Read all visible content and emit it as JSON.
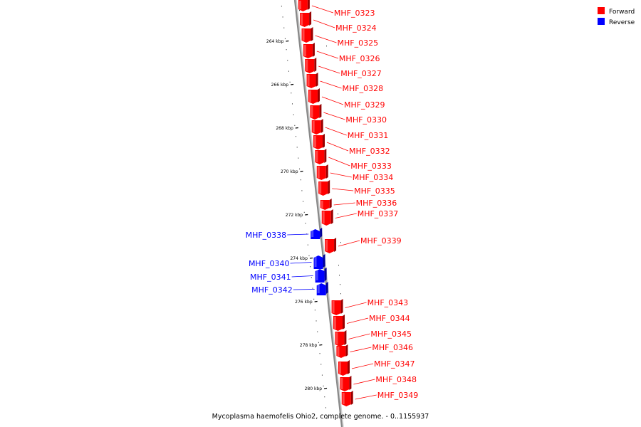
{
  "caption": "Mycoplasma haemofelis Ohio2, complete genome. - 0..1155937",
  "legend": [
    {
      "label": "Forward",
      "color": "#ff0000"
    },
    {
      "label": "Reverse",
      "color": "#0000ff"
    }
  ],
  "colors": {
    "forward": "#ff0000",
    "reverse": "#0000ff",
    "backbone": "#888888"
  },
  "ticks": [
    "264 kbp",
    "266 kbp",
    "268 kbp",
    "270 kbp",
    "272 kbp",
    "274 kbp",
    "276 kbp",
    "278 kbp",
    "280 kbp"
  ],
  "genes": [
    {
      "name": "MHF_0323",
      "strand": "forward"
    },
    {
      "name": "MHF_0324",
      "strand": "forward"
    },
    {
      "name": "MHF_0325",
      "strand": "forward"
    },
    {
      "name": "MHF_0326",
      "strand": "forward"
    },
    {
      "name": "MHF_0327",
      "strand": "forward"
    },
    {
      "name": "MHF_0328",
      "strand": "forward"
    },
    {
      "name": "MHF_0329",
      "strand": "forward"
    },
    {
      "name": "MHF_0330",
      "strand": "forward"
    },
    {
      "name": "MHF_0331",
      "strand": "forward"
    },
    {
      "name": "MHF_0332",
      "strand": "forward"
    },
    {
      "name": "MHF_0333",
      "strand": "forward"
    },
    {
      "name": "MHF_0334",
      "strand": "forward"
    },
    {
      "name": "MHF_0335",
      "strand": "forward"
    },
    {
      "name": "MHF_0336",
      "strand": "forward"
    },
    {
      "name": "MHF_0337",
      "strand": "forward"
    },
    {
      "name": "MHF_0338",
      "strand": "reverse"
    },
    {
      "name": "MHF_0339",
      "strand": "forward"
    },
    {
      "name": "MHF_0340",
      "strand": "reverse"
    },
    {
      "name": "MHF_0341",
      "strand": "reverse"
    },
    {
      "name": "MHF_0342",
      "strand": "reverse"
    },
    {
      "name": "MHF_0343",
      "strand": "forward"
    },
    {
      "name": "MHF_0344",
      "strand": "forward"
    },
    {
      "name": "MHF_0345",
      "strand": "forward"
    },
    {
      "name": "MHF_0346",
      "strand": "forward"
    },
    {
      "name": "MHF_0347",
      "strand": "forward"
    },
    {
      "name": "MHF_0348",
      "strand": "forward"
    },
    {
      "name": "MHF_0349",
      "strand": "forward"
    }
  ]
}
